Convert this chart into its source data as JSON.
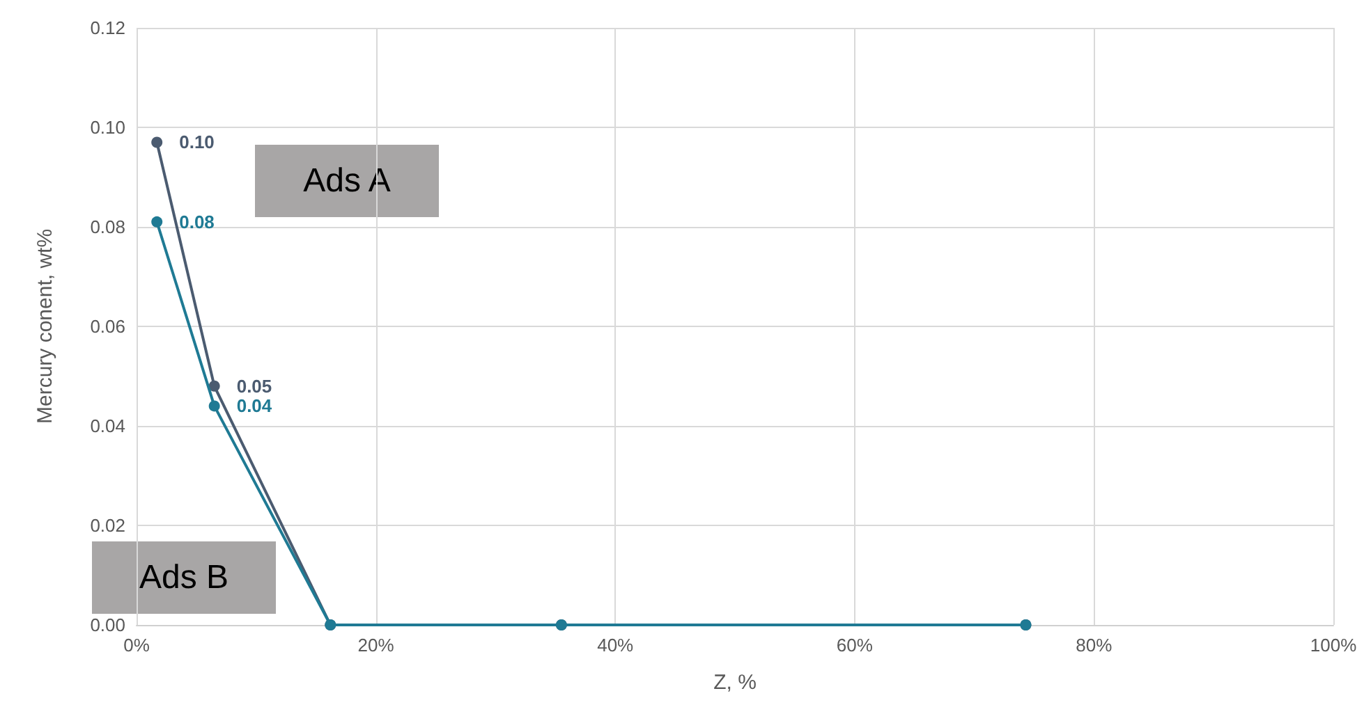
{
  "chart_data": {
    "type": "line",
    "xlabel": "Z, %",
    "ylabel": "Mercury conent, wt%",
    "x": [
      1.7,
      6.5,
      16.2,
      35.5,
      74.3
    ],
    "series": [
      {
        "color": "#4b5b70",
        "values": [
          0.097,
          0.048,
          0,
          0,
          0
        ],
        "value_labels": [
          "0.10",
          "0.05",
          null,
          null,
          null
        ]
      },
      {
        "color": "#1f7a94",
        "values": [
          0.081,
          0.044,
          0,
          0,
          0
        ],
        "value_labels": [
          "0.08",
          "0.04",
          null,
          null,
          null
        ]
      }
    ],
    "xlim": [
      0,
      100
    ],
    "xticks": [
      {
        "value": 0,
        "label": "0%"
      },
      {
        "value": 20,
        "label": "20%"
      },
      {
        "value": 40,
        "label": "40%"
      },
      {
        "value": 60,
        "label": "60%"
      },
      {
        "value": 80,
        "label": "80%"
      },
      {
        "value": 100,
        "label": "100%"
      }
    ],
    "ylim": [
      0,
      0.12
    ],
    "yticks": [
      {
        "value": 0,
        "label": "0.00"
      },
      {
        "value": 0.02,
        "label": "0.02"
      },
      {
        "value": 0.04,
        "label": "0.04"
      },
      {
        "value": 0.06,
        "label": "0.06"
      },
      {
        "value": 0.08,
        "label": "0.08"
      },
      {
        "value": 0.1,
        "label": "0.10"
      },
      {
        "value": 0.12,
        "label": "0.12"
      }
    ],
    "annotations": [
      "Ads A",
      "Ads B"
    ],
    "grid": true,
    "marker": "circle",
    "line_style": "solid"
  }
}
